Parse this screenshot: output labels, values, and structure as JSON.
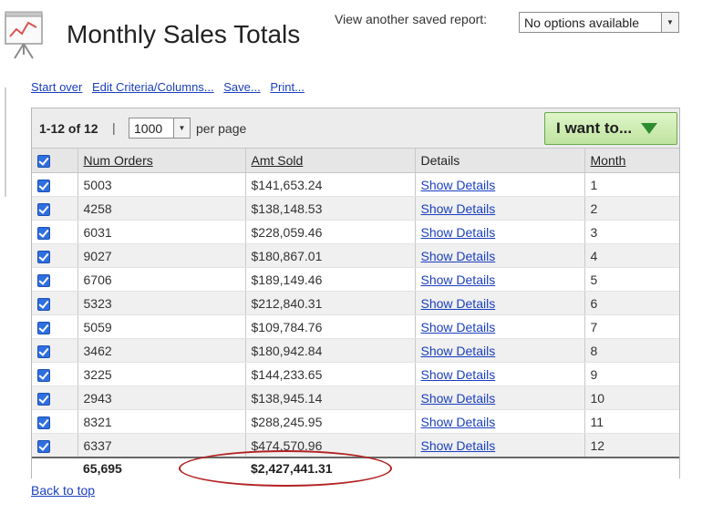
{
  "header": {
    "title": "Monthly Sales Totals",
    "saved_report_label": "View another saved report:",
    "saved_report_value": "No options available"
  },
  "actions": [
    {
      "label": "Start over"
    },
    {
      "label": "Edit Criteria/Columns..."
    },
    {
      "label": "Save..."
    },
    {
      "label": "Print..."
    }
  ],
  "toolbar": {
    "range": "1-12 of 12",
    "separator": "|",
    "per_page_value": "1000",
    "per_page_label": "per page",
    "i_want_label": "I want to..."
  },
  "table": {
    "columns": [
      "Num Orders",
      "Amt Sold",
      "Details",
      "Month"
    ],
    "rows": [
      {
        "orders": "5003",
        "amount": "$141,653.24",
        "details": "Show Details",
        "month": "1"
      },
      {
        "orders": "4258",
        "amount": "$138,148.53",
        "details": "Show Details",
        "month": "2"
      },
      {
        "orders": "6031",
        "amount": "$228,059.46",
        "details": "Show Details",
        "month": "3"
      },
      {
        "orders": "9027",
        "amount": "$180,867.01",
        "details": "Show Details",
        "month": "4"
      },
      {
        "orders": "6706",
        "amount": "$189,149.46",
        "details": "Show Details",
        "month": "5"
      },
      {
        "orders": "5323",
        "amount": "$212,840.31",
        "details": "Show Details",
        "month": "6"
      },
      {
        "orders": "5059",
        "amount": "$109,784.76",
        "details": "Show Details",
        "month": "7"
      },
      {
        "orders": "3462",
        "amount": "$180,942.84",
        "details": "Show Details",
        "month": "8"
      },
      {
        "orders": "3225",
        "amount": "$144,233.65",
        "details": "Show Details",
        "month": "9"
      },
      {
        "orders": "2943",
        "amount": "$138,945.14",
        "details": "Show Details",
        "month": "10"
      },
      {
        "orders": "8321",
        "amount": "$288,245.95",
        "details": "Show Details",
        "month": "11"
      },
      {
        "orders": "6337",
        "amount": "$474,570.96",
        "details": "Show Details",
        "month": "12"
      }
    ],
    "totals": {
      "orders": "65,695",
      "amount": "$2,427,441.31"
    }
  },
  "footer": {
    "back_to_top": "Back to top"
  },
  "colors": {
    "link": "#1a3fbf",
    "highlight": "#b22222",
    "button_green": "#bfe39f"
  }
}
